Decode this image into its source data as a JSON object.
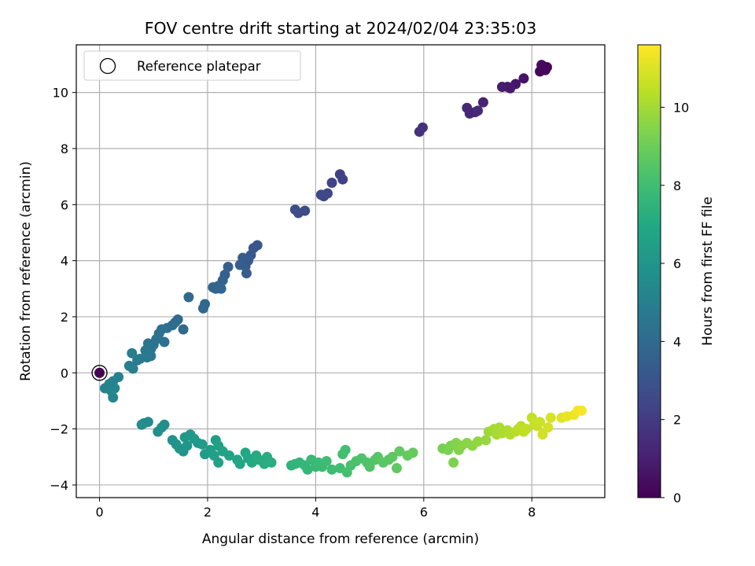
{
  "chart_data": {
    "type": "scatter",
    "title": "FOV centre drift starting at 2024/02/04 23:35:03",
    "xlabel": "Angular distance from reference (arcmin)",
    "ylabel": "Rotation from reference (arcmin)",
    "xlim": [
      -0.43,
      9.35
    ],
    "ylim": [
      -4.45,
      11.7
    ],
    "xticks": [
      0,
      2,
      4,
      6,
      8
    ],
    "yticks": [
      -4,
      -2,
      0,
      2,
      4,
      6,
      8,
      10
    ],
    "grid": true,
    "colormap": "viridis",
    "colorbar": {
      "label": "Hours from first FF file",
      "range": [
        0,
        11.6
      ],
      "ticks": [
        0,
        2,
        4,
        6,
        8,
        10
      ]
    },
    "legend": {
      "position": "upper-left",
      "entries": [
        "Reference platepar"
      ]
    },
    "reference_point": {
      "x": 0,
      "y": 0,
      "hours": 0
    },
    "points": [
      [
        8.2,
        10.95,
        0.1
      ],
      [
        8.28,
        10.9,
        0.15
      ],
      [
        8.15,
        10.75,
        0.2
      ],
      [
        8.25,
        10.8,
        0.25
      ],
      [
        8.18,
        10.98,
        0.3
      ],
      [
        7.85,
        10.5,
        0.6
      ],
      [
        7.7,
        10.3,
        0.7
      ],
      [
        7.55,
        10.2,
        0.8
      ],
      [
        7.6,
        10.15,
        0.85
      ],
      [
        7.45,
        10.2,
        0.9
      ],
      [
        7.1,
        9.65,
        1.1
      ],
      [
        6.95,
        9.3,
        1.2
      ],
      [
        6.85,
        9.25,
        1.25
      ],
      [
        6.8,
        9.45,
        1.3
      ],
      [
        7.0,
        9.35,
        1.35
      ],
      [
        5.98,
        8.75,
        1.6
      ],
      [
        5.92,
        8.6,
        1.65
      ],
      [
        4.5,
        6.9,
        2.2
      ],
      [
        4.45,
        7.08,
        2.25
      ],
      [
        4.3,
        6.78,
        2.3
      ],
      [
        4.15,
        6.3,
        2.4
      ],
      [
        4.1,
        6.35,
        2.45
      ],
      [
        4.22,
        6.4,
        2.5
      ],
      [
        3.8,
        5.78,
        2.7
      ],
      [
        3.68,
        5.7,
        2.75
      ],
      [
        3.62,
        5.82,
        2.8
      ],
      [
        2.92,
        4.55,
        3.1
      ],
      [
        2.85,
        4.45,
        3.15
      ],
      [
        2.8,
        4.2,
        3.2
      ],
      [
        2.75,
        4.0,
        3.25
      ],
      [
        2.7,
        3.8,
        3.3
      ],
      [
        2.65,
        4.1,
        3.35
      ],
      [
        2.6,
        3.85,
        3.4
      ],
      [
        2.72,
        3.55,
        3.45
      ],
      [
        2.38,
        3.78,
        3.5
      ],
      [
        2.32,
        3.5,
        3.55
      ],
      [
        2.28,
        3.3,
        3.6
      ],
      [
        2.2,
        3.1,
        3.65
      ],
      [
        2.15,
        3.0,
        3.7
      ],
      [
        2.1,
        3.05,
        3.75
      ],
      [
        2.25,
        3.0,
        3.8
      ],
      [
        1.95,
        2.45,
        3.85
      ],
      [
        1.92,
        2.3,
        3.9
      ],
      [
        1.65,
        2.7,
        3.95
      ],
      [
        1.55,
        1.55,
        4.0
      ],
      [
        1.45,
        1.9,
        4.05
      ],
      [
        1.4,
        1.8,
        4.1
      ],
      [
        1.35,
        1.7,
        4.15
      ],
      [
        1.25,
        1.6,
        4.2
      ],
      [
        1.15,
        1.55,
        4.25
      ],
      [
        1.1,
        1.4,
        4.3
      ],
      [
        1.2,
        1.1,
        4.35
      ],
      [
        1.05,
        1.2,
        4.4
      ],
      [
        1.0,
        1.0,
        4.45
      ],
      [
        0.95,
        0.85,
        4.5
      ],
      [
        0.9,
        1.05,
        4.55
      ],
      [
        0.85,
        0.8,
        4.6
      ],
      [
        0.95,
        0.6,
        4.65
      ],
      [
        0.88,
        0.55,
        4.7
      ],
      [
        0.75,
        0.5,
        4.75
      ],
      [
        0.7,
        0.45,
        4.8
      ],
      [
        0.6,
        0.7,
        4.85
      ],
      [
        0.55,
        0.25,
        4.9
      ],
      [
        0.62,
        0.15,
        4.95
      ],
      [
        0.35,
        -0.15,
        5.0
      ],
      [
        0.25,
        -0.3,
        5.05
      ],
      [
        0.18,
        -0.4,
        5.1
      ],
      [
        0.1,
        -0.55,
        5.15
      ],
      [
        0.22,
        -0.65,
        5.2
      ],
      [
        0.28,
        -0.55,
        5.25
      ],
      [
        0.25,
        -0.88,
        5.3
      ],
      [
        0.9,
        -1.75,
        5.5
      ],
      [
        0.82,
        -1.8,
        5.55
      ],
      [
        0.78,
        -1.85,
        5.6
      ],
      [
        1.2,
        -1.85,
        5.65
      ],
      [
        1.15,
        -1.95,
        5.7
      ],
      [
        1.08,
        -2.1,
        5.75
      ],
      [
        1.35,
        -2.4,
        5.85
      ],
      [
        1.42,
        -2.55,
        5.9
      ],
      [
        1.48,
        -2.7,
        5.95
      ],
      [
        1.55,
        -2.8,
        6.0
      ],
      [
        1.62,
        -2.6,
        6.05
      ],
      [
        1.58,
        -2.3,
        6.1
      ],
      [
        1.68,
        -2.2,
        6.15
      ],
      [
        1.75,
        -2.35,
        6.2
      ],
      [
        1.82,
        -2.5,
        6.25
      ],
      [
        1.9,
        -2.55,
        6.3
      ],
      [
        1.95,
        -2.9,
        6.35
      ],
      [
        2.05,
        -2.75,
        6.4
      ],
      [
        2.15,
        -2.4,
        6.45
      ],
      [
        2.2,
        -2.6,
        6.5
      ],
      [
        2.12,
        -2.95,
        6.55
      ],
      [
        2.2,
        -3.2,
        6.6
      ],
      [
        2.28,
        -2.8,
        6.65
      ],
      [
        2.4,
        -2.95,
        6.7
      ],
      [
        2.55,
        -3.1,
        6.8
      ],
      [
        2.6,
        -3.25,
        6.85
      ],
      [
        2.7,
        -2.85,
        6.9
      ],
      [
        2.75,
        -3.05,
        6.95
      ],
      [
        2.82,
        -3.2,
        7.0
      ],
      [
        2.9,
        -2.95,
        7.05
      ],
      [
        2.95,
        -3.1,
        7.1
      ],
      [
        3.05,
        -3.25,
        7.15
      ],
      [
        3.1,
        -3.0,
        7.2
      ],
      [
        3.18,
        -3.2,
        7.25
      ],
      [
        3.55,
        -3.3,
        7.45
      ],
      [
        3.62,
        -3.25,
        7.5
      ],
      [
        3.7,
        -3.2,
        7.55
      ],
      [
        3.8,
        -3.3,
        7.6
      ],
      [
        3.85,
        -3.45,
        7.65
      ],
      [
        3.92,
        -3.1,
        7.7
      ],
      [
        4.0,
        -3.35,
        7.75
      ],
      [
        4.05,
        -3.2,
        7.8
      ],
      [
        4.12,
        -3.35,
        7.85
      ],
      [
        4.2,
        -3.15,
        7.9
      ],
      [
        4.3,
        -3.45,
        7.95
      ],
      [
        4.45,
        -3.4,
        8.0
      ],
      [
        4.5,
        -2.9,
        8.05
      ],
      [
        4.55,
        -2.75,
        8.1
      ],
      [
        4.58,
        -3.55,
        8.15
      ],
      [
        4.65,
        -3.3,
        8.2
      ],
      [
        4.75,
        -3.15,
        8.25
      ],
      [
        4.85,
        -3.05,
        8.3
      ],
      [
        4.95,
        -3.2,
        8.35
      ],
      [
        5.0,
        -3.35,
        8.4
      ],
      [
        5.1,
        -3.1,
        8.45
      ],
      [
        5.15,
        -3.0,
        8.5
      ],
      [
        5.25,
        -3.2,
        8.55
      ],
      [
        5.35,
        -3.1,
        8.6
      ],
      [
        5.42,
        -3.0,
        8.65
      ],
      [
        5.5,
        -3.4,
        8.7
      ],
      [
        5.55,
        -2.8,
        8.75
      ],
      [
        5.7,
        -2.95,
        8.8
      ],
      [
        5.8,
        -2.85,
        8.85
      ],
      [
        6.35,
        -2.7,
        9.2
      ],
      [
        6.45,
        -2.75,
        9.25
      ],
      [
        6.5,
        -2.6,
        9.3
      ],
      [
        6.55,
        -3.2,
        9.35
      ],
      [
        6.6,
        -2.5,
        9.4
      ],
      [
        6.65,
        -2.75,
        9.45
      ],
      [
        6.7,
        -2.6,
        9.5
      ],
      [
        6.8,
        -2.5,
        9.55
      ],
      [
        6.9,
        -2.6,
        9.6
      ],
      [
        7.0,
        -2.45,
        9.7
      ],
      [
        7.15,
        -2.4,
        9.8
      ],
      [
        7.2,
        -2.1,
        9.9
      ],
      [
        7.3,
        -2.0,
        10.0
      ],
      [
        7.35,
        -2.2,
        10.05
      ],
      [
        7.4,
        -1.95,
        10.1
      ],
      [
        7.45,
        -2.15,
        10.15
      ],
      [
        7.55,
        -2.05,
        10.2
      ],
      [
        7.6,
        -2.2,
        10.25
      ],
      [
        7.7,
        -2.1,
        10.3
      ],
      [
        7.75,
        -2.0,
        10.35
      ],
      [
        7.8,
        -1.9,
        10.4
      ],
      [
        7.85,
        -2.1,
        10.45
      ],
      [
        7.9,
        -2.0,
        10.5
      ],
      [
        8.0,
        -1.6,
        10.55
      ],
      [
        8.05,
        -1.8,
        10.6
      ],
      [
        8.1,
        -1.9,
        10.65
      ],
      [
        8.15,
        -1.75,
        10.7
      ],
      [
        8.2,
        -2.2,
        10.8
      ],
      [
        8.3,
        -1.95,
        10.85
      ],
      [
        8.35,
        -1.6,
        10.9
      ],
      [
        8.55,
        -1.6,
        11.1
      ],
      [
        8.65,
        -1.55,
        11.2
      ],
      [
        8.78,
        -1.5,
        11.3
      ],
      [
        8.85,
        -1.35,
        11.4
      ],
      [
        8.92,
        -1.35,
        11.5
      ]
    ]
  }
}
